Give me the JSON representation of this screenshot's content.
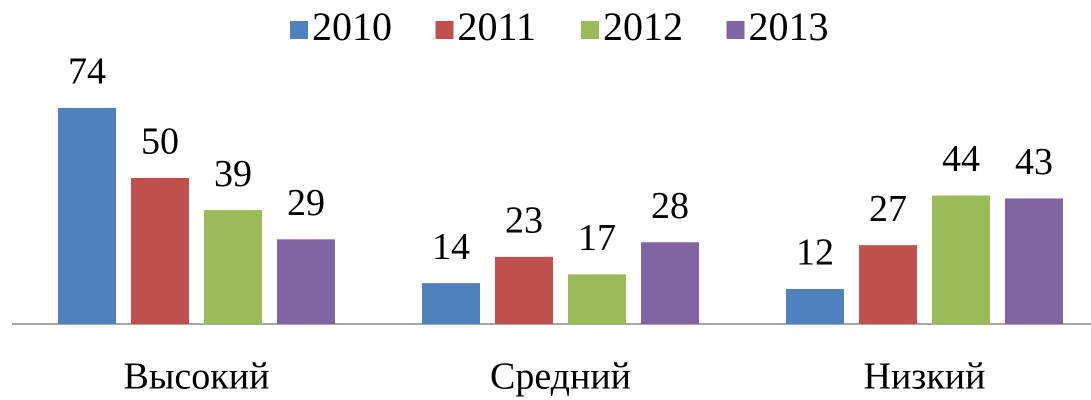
{
  "chart_data": {
    "type": "bar",
    "categories": [
      "Высокий",
      "Средний",
      "Низкий"
    ],
    "series": [
      {
        "name": "2010",
        "color": "#4f81bd",
        "values": [
          74,
          14,
          12
        ]
      },
      {
        "name": "2011",
        "color": "#c0504d",
        "values": [
          50,
          23,
          27
        ]
      },
      {
        "name": "2012",
        "color": "#9bbb59",
        "values": [
          39,
          17,
          44
        ]
      },
      {
        "name": "2013",
        "color": "#8064a2",
        "values": [
          29,
          28,
          43
        ]
      }
    ],
    "legend": "top"
  }
}
